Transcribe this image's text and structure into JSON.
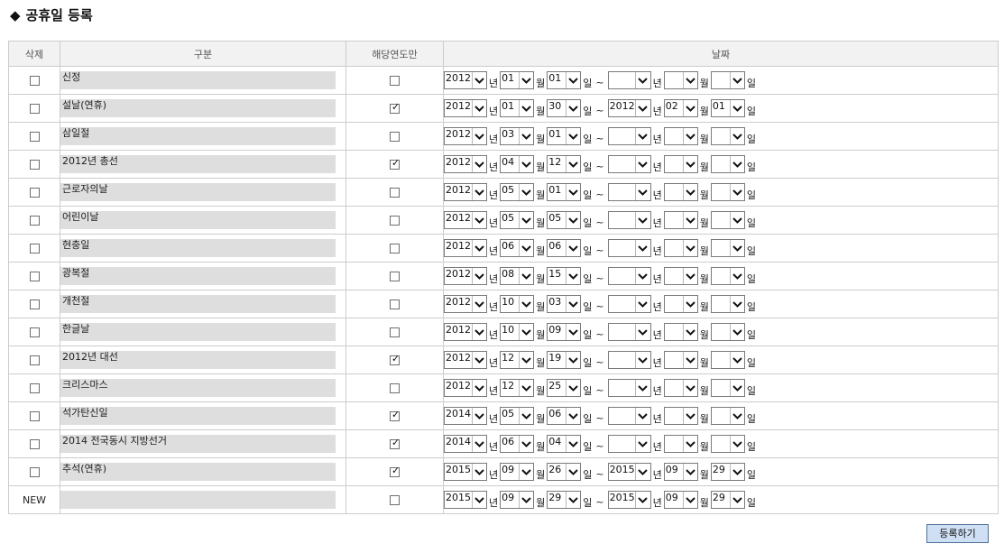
{
  "page_title": "공휴일 등록",
  "title_icon": "diamond-icon",
  "headers": {
    "delete": "삭제",
    "category": "구분",
    "year_only": "해당연도만",
    "date": "날짜"
  },
  "units": {
    "year": "년",
    "month": "월",
    "day": "일",
    "tilde": "~"
  },
  "rows": [
    {
      "del_label": "",
      "name": "신정",
      "year_only": false,
      "start": {
        "year": "2012",
        "month": "01",
        "day": "01"
      },
      "end": {
        "year": "",
        "month": "",
        "day": ""
      }
    },
    {
      "del_label": "",
      "name": "설날(연휴)",
      "year_only": true,
      "start": {
        "year": "2012",
        "month": "01",
        "day": "30"
      },
      "end": {
        "year": "2012",
        "month": "02",
        "day": "01"
      }
    },
    {
      "del_label": "",
      "name": "삼일절",
      "year_only": false,
      "start": {
        "year": "2012",
        "month": "03",
        "day": "01"
      },
      "end": {
        "year": "",
        "month": "",
        "day": ""
      }
    },
    {
      "del_label": "",
      "name": "2012년 총선",
      "year_only": true,
      "start": {
        "year": "2012",
        "month": "04",
        "day": "12"
      },
      "end": {
        "year": "",
        "month": "",
        "day": ""
      }
    },
    {
      "del_label": "",
      "name": "근로자의날",
      "year_only": false,
      "start": {
        "year": "2012",
        "month": "05",
        "day": "01"
      },
      "end": {
        "year": "",
        "month": "",
        "day": ""
      }
    },
    {
      "del_label": "",
      "name": "어린이날",
      "year_only": false,
      "start": {
        "year": "2012",
        "month": "05",
        "day": "05"
      },
      "end": {
        "year": "",
        "month": "",
        "day": ""
      }
    },
    {
      "del_label": "",
      "name": "현충일",
      "year_only": false,
      "start": {
        "year": "2012",
        "month": "06",
        "day": "06"
      },
      "end": {
        "year": "",
        "month": "",
        "day": ""
      }
    },
    {
      "del_label": "",
      "name": "광복절",
      "year_only": false,
      "start": {
        "year": "2012",
        "month": "08",
        "day": "15"
      },
      "end": {
        "year": "",
        "month": "",
        "day": ""
      }
    },
    {
      "del_label": "",
      "name": "개천절",
      "year_only": false,
      "start": {
        "year": "2012",
        "month": "10",
        "day": "03"
      },
      "end": {
        "year": "",
        "month": "",
        "day": ""
      }
    },
    {
      "del_label": "",
      "name": "한글날",
      "year_only": false,
      "start": {
        "year": "2012",
        "month": "10",
        "day": "09"
      },
      "end": {
        "year": "",
        "month": "",
        "day": ""
      }
    },
    {
      "del_label": "",
      "name": "2012년 대선",
      "year_only": true,
      "start": {
        "year": "2012",
        "month": "12",
        "day": "19"
      },
      "end": {
        "year": "",
        "month": "",
        "day": ""
      }
    },
    {
      "del_label": "",
      "name": "크리스마스",
      "year_only": false,
      "start": {
        "year": "2012",
        "month": "12",
        "day": "25"
      },
      "end": {
        "year": "",
        "month": "",
        "day": ""
      }
    },
    {
      "del_label": "",
      "name": "석가탄신일",
      "year_only": true,
      "start": {
        "year": "2014",
        "month": "05",
        "day": "06"
      },
      "end": {
        "year": "",
        "month": "",
        "day": ""
      }
    },
    {
      "del_label": "",
      "name": "2014 전국동시 지방선거",
      "year_only": true,
      "start": {
        "year": "2014",
        "month": "06",
        "day": "04"
      },
      "end": {
        "year": "",
        "month": "",
        "day": ""
      }
    },
    {
      "del_label": "",
      "name": "추석(연휴)",
      "year_only": true,
      "start": {
        "year": "2015",
        "month": "09",
        "day": "26"
      },
      "end": {
        "year": "2015",
        "month": "09",
        "day": "29"
      }
    },
    {
      "del_label": "NEW",
      "name": "",
      "year_only": false,
      "start": {
        "year": "2015",
        "month": "09",
        "day": "29"
      },
      "end": {
        "year": "2015",
        "month": "09",
        "day": "29"
      }
    }
  ],
  "submit_label": "등록하기"
}
